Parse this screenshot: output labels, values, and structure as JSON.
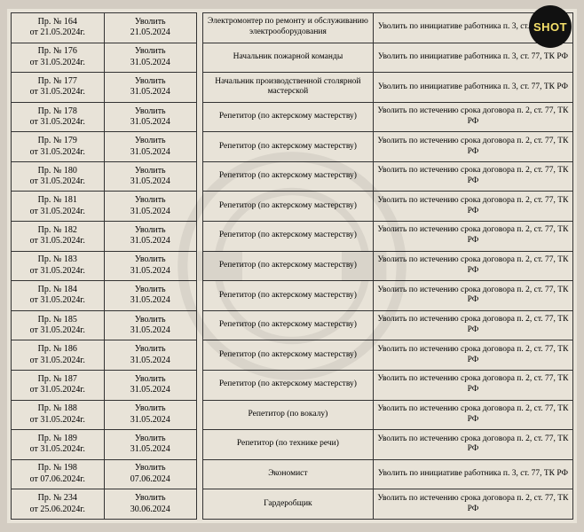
{
  "badge": {
    "label": "SHOT"
  },
  "left": [
    {
      "order": "Пр. № 164\nот 21.05.2024г.",
      "action": "Уволить\n21.05.2024"
    },
    {
      "order": "Пр. № 176\nот 31.05.2024г.",
      "action": "Уволить\n31.05.2024"
    },
    {
      "order": "Пр. № 177\nот 31.05.2024г.",
      "action": "Уволить\n31.05.2024"
    },
    {
      "order": "Пр. № 178\nот 31.05.2024г.",
      "action": "Уволить\n31.05.2024"
    },
    {
      "order": "Пр. № 179\nот 31.05.2024г.",
      "action": "Уволить\n31.05.2024"
    },
    {
      "order": "Пр. № 180\nот 31.05.2024г.",
      "action": "Уволить\n31.05.2024"
    },
    {
      "order": "Пр. № 181\nот 31.05.2024г.",
      "action": "Уволить\n31.05.2024"
    },
    {
      "order": "Пр. № 182\nот 31.05.2024г.",
      "action": "Уволить\n31.05.2024"
    },
    {
      "order": "Пр. № 183\nот 31.05.2024г.",
      "action": "Уволить\n31.05.2024"
    },
    {
      "order": "Пр. № 184\nот 31.05.2024г.",
      "action": "Уволить\n31.05.2024"
    },
    {
      "order": "Пр. № 185\nот 31.05.2024г.",
      "action": "Уволить\n31.05.2024"
    },
    {
      "order": "Пр. № 186\nот 31.05.2024г.",
      "action": "Уволить\n31.05.2024"
    },
    {
      "order": "Пр. № 187\nот 31.05.2024г.",
      "action": "Уволить\n31.05.2024"
    },
    {
      "order": "Пр. № 188\nот 31.05.2024г.",
      "action": "Уволить\n31.05.2024"
    },
    {
      "order": "Пр. № 189\nот 31.05.2024г.",
      "action": "Уволить\n31.05.2024"
    },
    {
      "order": "Пр. № 198\nот 07.06.2024г.",
      "action": "Уволить\n07.06.2024"
    },
    {
      "order": "Пр. № 234\nот 25.06.2024г.",
      "action": "Уволить\n30.06.2024"
    }
  ],
  "right": [
    {
      "pos": "Электромонтер по ремонту и обслуживанию электрооборудования",
      "reason": "Уволить по инициативе работника п. 3, ст. 77, ТК РФ"
    },
    {
      "pos": "Начальник пожарной команды",
      "reason": "Уволить по инициативе работника п. 3, ст. 77, ТК РФ"
    },
    {
      "pos": "Начальник производственной столярной мастерской",
      "reason": "Уволить по инициативе работника п. 3, ст. 77, ТК РФ"
    },
    {
      "pos": "Репетитор (по актерскому мастерству)",
      "reason": "Уволить по истечению срока договора п. 2, ст. 77, ТК РФ"
    },
    {
      "pos": "Репетитор (по актерскому мастерству)",
      "reason": "Уволить по истечению срока договора п. 2, ст. 77, ТК РФ"
    },
    {
      "pos": "Репетитор (по актерскому мастерству)",
      "reason": "Уволить по истечению срока договора п. 2, ст. 77, ТК РФ"
    },
    {
      "pos": "Репетитор (по актерскому мастерству)",
      "reason": "Уволить по истечению срока договора п. 2, ст. 77, ТК РФ"
    },
    {
      "pos": "Репетитор (по актерскому мастерству)",
      "reason": "Уволить по истечению срока договора п. 2, ст. 77, ТК РФ"
    },
    {
      "pos": "Репетитор (по актерскому мастерству)",
      "reason": "Уволить по истечению срока договора п. 2, ст. 77, ТК РФ"
    },
    {
      "pos": "Репетитор (по актерскому мастерству)",
      "reason": "Уволить по истечению срока договора п. 2, ст. 77, ТК РФ"
    },
    {
      "pos": "Репетитор (по актерскому мастерству)",
      "reason": "Уволить по истечению срока договора п. 2, ст. 77, ТК РФ"
    },
    {
      "pos": "Репетитор (по актерскому мастерству)",
      "reason": "Уволить по истечению срока договора п. 2, ст. 77, ТК РФ"
    },
    {
      "pos": "Репетитор (по актерскому мастерству)",
      "reason": "Уволить по истечению срока договора п. 2, ст. 77, ТК РФ"
    },
    {
      "pos": "Репетитор (по вокалу)",
      "reason": "Уволить по истечению срока договора п. 2, ст. 77, ТК РФ"
    },
    {
      "pos": "Репетитор (по технике речи)",
      "reason": "Уволить по истечению срока договора п. 2, ст. 77, ТК РФ"
    },
    {
      "pos": "Экономист",
      "reason": "Уволить по инициативе работника п. 3, ст. 77, ТК РФ"
    },
    {
      "pos": "Гардеробщик",
      "reason": "Уволить по истечению срока договора п. 2, ст. 77, ТК РФ"
    }
  ]
}
